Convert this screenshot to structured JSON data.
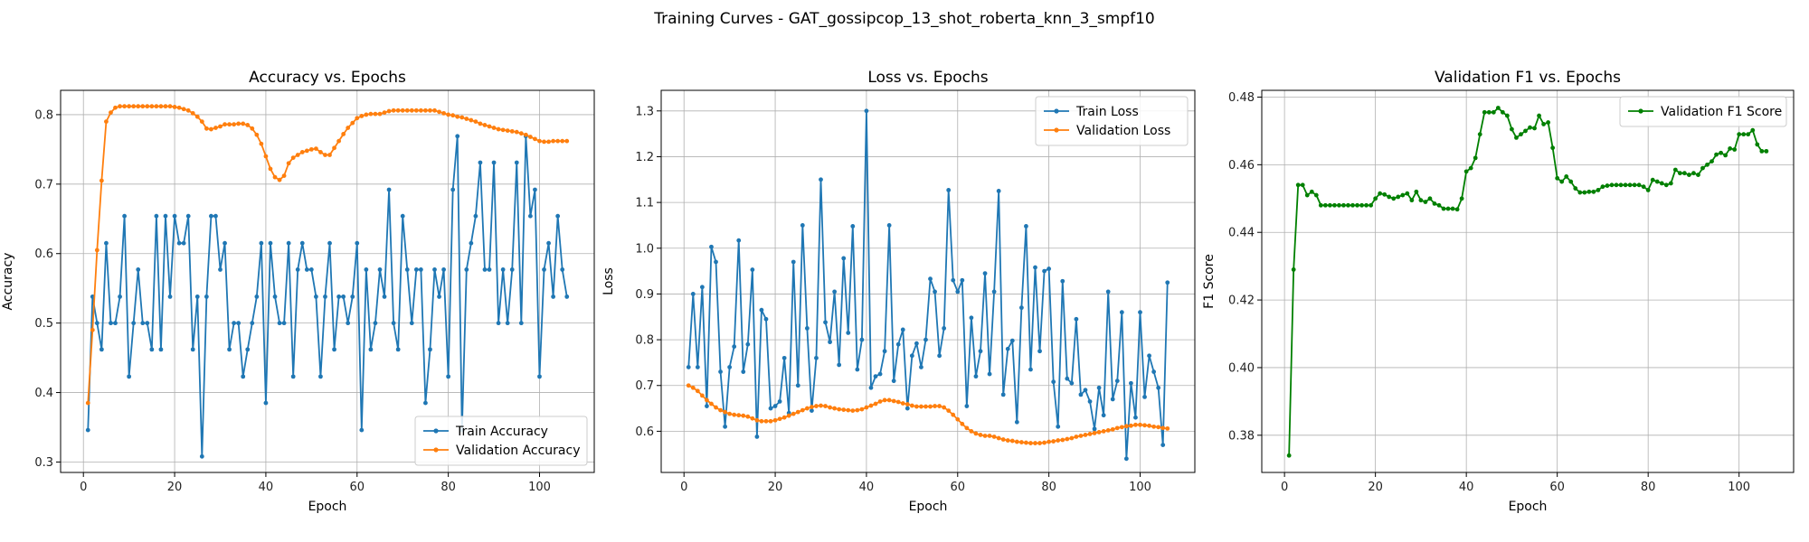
{
  "figure": {
    "suptitle": "Training Curves - GAT_gossipcop_13_shot_roberta_knn_3_smpf10"
  },
  "colors": {
    "train": "#1f77b4",
    "validation": "#ff7f0e",
    "f1": "#008000",
    "grid": "#b0b0b0"
  },
  "chart_data": [
    {
      "type": "line",
      "title": "Accuracy vs. Epochs",
      "xlabel": "Epoch",
      "ylabel": "Accuracy",
      "xlim": [
        -5,
        112
      ],
      "ylim": [
        0.285,
        0.835
      ],
      "xticks": [
        0,
        20,
        40,
        60,
        80,
        100
      ],
      "yticks": [
        0.3,
        0.4,
        0.5,
        0.6,
        0.7,
        0.8
      ],
      "ytick_labels": [
        "0.3",
        "0.4",
        "0.5",
        "0.6",
        "0.7",
        "0.8"
      ],
      "grid": true,
      "legend_position": "lower-right",
      "series": [
        {
          "name": "Train Accuracy",
          "color": "#1f77b4",
          "values": [
            0.346,
            0.538,
            0.5,
            0.462,
            0.615,
            0.5,
            0.5,
            0.538,
            0.654,
            0.423,
            0.5,
            0.577,
            0.5,
            0.5,
            0.462,
            0.654,
            0.462,
            0.654,
            0.538,
            0.654,
            0.615,
            0.615,
            0.654,
            0.462,
            0.538,
            0.308,
            0.538,
            0.654,
            0.654,
            0.577,
            0.615,
            0.462,
            0.5,
            0.5,
            0.423,
            0.462,
            0.5,
            0.538,
            0.615,
            0.385,
            0.615,
            0.538,
            0.5,
            0.5,
            0.615,
            0.423,
            0.577,
            0.615,
            0.577,
            0.577,
            0.538,
            0.423,
            0.538,
            0.615,
            0.462,
            0.538,
            0.538,
            0.5,
            0.538,
            0.615,
            0.346,
            0.577,
            0.462,
            0.5,
            0.577,
            0.538,
            0.692,
            0.5,
            0.462,
            0.654,
            0.577,
            0.5,
            0.577,
            0.577,
            0.385,
            0.462,
            0.577,
            0.538,
            0.577,
            0.423,
            0.692,
            0.769,
            0.346,
            0.577,
            0.615,
            0.654,
            0.731,
            0.577,
            0.577,
            0.731,
            0.5,
            0.577,
            0.5,
            0.577,
            0.731,
            0.5,
            0.769,
            0.654,
            0.692,
            0.423,
            0.577,
            0.615,
            0.538,
            0.654,
            0.577,
            0.538
          ]
        },
        {
          "name": "Validation Accuracy",
          "color": "#ff7f0e",
          "values": [
            0.385,
            0.49,
            0.605,
            0.705,
            0.79,
            0.803,
            0.81,
            0.812,
            0.812,
            0.812,
            0.812,
            0.812,
            0.812,
            0.812,
            0.812,
            0.812,
            0.812,
            0.812,
            0.812,
            0.811,
            0.81,
            0.808,
            0.806,
            0.802,
            0.797,
            0.79,
            0.78,
            0.779,
            0.781,
            0.783,
            0.786,
            0.786,
            0.786,
            0.787,
            0.787,
            0.785,
            0.78,
            0.771,
            0.758,
            0.74,
            0.722,
            0.71,
            0.706,
            0.712,
            0.73,
            0.738,
            0.742,
            0.746,
            0.748,
            0.75,
            0.751,
            0.746,
            0.742,
            0.742,
            0.752,
            0.762,
            0.772,
            0.781,
            0.788,
            0.795,
            0.798,
            0.8,
            0.801,
            0.801,
            0.801,
            0.803,
            0.805,
            0.806,
            0.806,
            0.806,
            0.806,
            0.806,
            0.806,
            0.806,
            0.806,
            0.806,
            0.806,
            0.804,
            0.802,
            0.8,
            0.799,
            0.797,
            0.796,
            0.794,
            0.792,
            0.79,
            0.787,
            0.785,
            0.783,
            0.781,
            0.779,
            0.778,
            0.777,
            0.776,
            0.775,
            0.773,
            0.771,
            0.768,
            0.765,
            0.762,
            0.761,
            0.761,
            0.762,
            0.762,
            0.762,
            0.762
          ]
        }
      ]
    },
    {
      "type": "line",
      "title": "Loss vs. Epochs",
      "xlabel": "Epoch",
      "ylabel": "Loss",
      "xlim": [
        -5,
        112
      ],
      "ylim": [
        0.51,
        1.345
      ],
      "xticks": [
        0,
        20,
        40,
        60,
        80,
        100
      ],
      "yticks": [
        0.6,
        0.7,
        0.8,
        0.9,
        1.0,
        1.1,
        1.2,
        1.3
      ],
      "ytick_labels": [
        "0.6",
        "0.7",
        "0.8",
        "0.9",
        "1.0",
        "1.1",
        "1.2",
        "1.3"
      ],
      "grid": true,
      "legend_position": "top-right",
      "series": [
        {
          "name": "Train Loss",
          "color": "#1f77b4",
          "values": [
            0.74,
            0.9,
            0.74,
            0.915,
            0.655,
            1.003,
            0.97,
            0.73,
            0.61,
            0.74,
            0.785,
            1.017,
            0.73,
            0.79,
            0.953,
            0.588,
            0.865,
            0.845,
            0.65,
            0.655,
            0.665,
            0.76,
            0.64,
            0.97,
            0.7,
            1.05,
            0.825,
            0.645,
            0.76,
            1.15,
            0.838,
            0.795,
            0.905,
            0.745,
            0.978,
            0.815,
            1.048,
            0.735,
            0.8,
            1.3,
            0.695,
            0.72,
            0.725,
            0.775,
            1.05,
            0.71,
            0.79,
            0.822,
            0.65,
            0.765,
            0.792,
            0.74,
            0.8,
            0.933,
            0.905,
            0.765,
            0.825,
            1.127,
            0.93,
            0.905,
            0.93,
            0.655,
            0.848,
            0.72,
            0.775,
            0.945,
            0.725,
            0.905,
            1.125,
            0.68,
            0.78,
            0.798,
            0.62,
            0.87,
            1.048,
            0.735,
            0.958,
            0.775,
            0.95,
            0.955,
            0.708,
            0.61,
            0.928,
            0.715,
            0.705,
            0.845,
            0.68,
            0.69,
            0.665,
            0.605,
            0.695,
            0.635,
            0.905,
            0.67,
            0.71,
            0.86,
            0.54,
            0.705,
            0.63,
            0.86,
            0.675,
            0.765,
            0.73,
            0.695,
            0.57,
            0.925
          ]
        },
        {
          "name": "Validation Loss",
          "color": "#ff7f0e",
          "values": [
            0.7,
            0.695,
            0.688,
            0.678,
            0.668,
            0.66,
            0.652,
            0.646,
            0.642,
            0.638,
            0.636,
            0.635,
            0.634,
            0.632,
            0.628,
            0.624,
            0.622,
            0.622,
            0.622,
            0.624,
            0.627,
            0.63,
            0.634,
            0.638,
            0.642,
            0.646,
            0.65,
            0.653,
            0.655,
            0.656,
            0.655,
            0.652,
            0.65,
            0.648,
            0.647,
            0.646,
            0.645,
            0.646,
            0.648,
            0.652,
            0.656,
            0.66,
            0.665,
            0.668,
            0.668,
            0.666,
            0.664,
            0.661,
            0.659,
            0.656,
            0.654,
            0.654,
            0.654,
            0.654,
            0.655,
            0.655,
            0.652,
            0.645,
            0.636,
            0.626,
            0.616,
            0.607,
            0.6,
            0.595,
            0.592,
            0.59,
            0.59,
            0.588,
            0.585,
            0.582,
            0.58,
            0.579,
            0.577,
            0.576,
            0.575,
            0.574,
            0.574,
            0.574,
            0.575,
            0.577,
            0.578,
            0.58,
            0.581,
            0.583,
            0.585,
            0.588,
            0.59,
            0.592,
            0.594,
            0.596,
            0.598,
            0.6,
            0.602,
            0.604,
            0.607,
            0.609,
            0.611,
            0.612,
            0.614,
            0.614,
            0.613,
            0.612,
            0.61,
            0.609,
            0.607,
            0.606
          ]
        }
      ]
    },
    {
      "type": "line",
      "title": "Validation F1 vs. Epochs",
      "xlabel": "Epoch",
      "ylabel": "F1 Score",
      "xlim": [
        -5,
        112
      ],
      "ylim": [
        0.369,
        0.482
      ],
      "xticks": [
        0,
        20,
        40,
        60,
        80,
        100
      ],
      "yticks": [
        0.38,
        0.4,
        0.42,
        0.44,
        0.46,
        0.48
      ],
      "ytick_labels": [
        "0.38",
        "0.40",
        "0.42",
        "0.44",
        "0.46",
        "0.48"
      ],
      "grid": true,
      "legend_position": "top-right",
      "series": [
        {
          "name": "Validation F1 Score",
          "color": "#008000",
          "values": [
            0.374,
            0.429,
            0.454,
            0.454,
            0.451,
            0.452,
            0.451,
            0.448,
            0.448,
            0.448,
            0.448,
            0.448,
            0.448,
            0.448,
            0.448,
            0.448,
            0.448,
            0.448,
            0.448,
            0.45,
            0.4515,
            0.4512,
            0.4505,
            0.45,
            0.4505,
            0.451,
            0.4515,
            0.4495,
            0.452,
            0.4495,
            0.449,
            0.45,
            0.4485,
            0.448,
            0.447,
            0.447,
            0.447,
            0.4468,
            0.45,
            0.458,
            0.459,
            0.462,
            0.469,
            0.4755,
            0.4755,
            0.4755,
            0.4768,
            0.4755,
            0.4745,
            0.4705,
            0.468,
            0.469,
            0.47,
            0.471,
            0.4708,
            0.4745,
            0.472,
            0.4725,
            0.465,
            0.456,
            0.455,
            0.4565,
            0.455,
            0.453,
            0.4518,
            0.4518,
            0.452,
            0.452,
            0.4525,
            0.4535,
            0.4538,
            0.454,
            0.454,
            0.454,
            0.454,
            0.454,
            0.454,
            0.454,
            0.4535,
            0.4525,
            0.4555,
            0.455,
            0.4545,
            0.454,
            0.4545,
            0.4585,
            0.4575,
            0.4575,
            0.457,
            0.4575,
            0.457,
            0.459,
            0.46,
            0.461,
            0.463,
            0.4635,
            0.4628,
            0.4648,
            0.4645,
            0.469,
            0.469,
            0.469,
            0.4702,
            0.466,
            0.464,
            0.464
          ]
        }
      ]
    }
  ]
}
